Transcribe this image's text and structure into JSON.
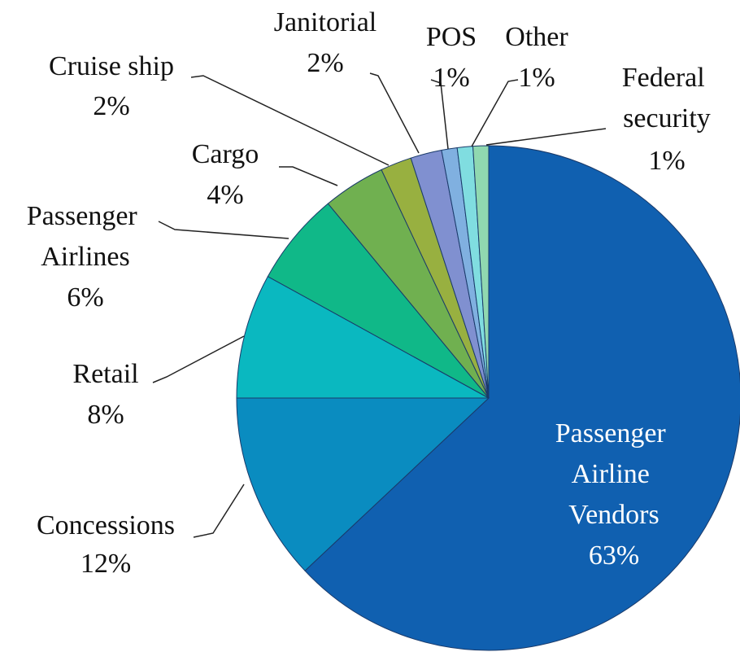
{
  "chart_data": {
    "type": "pie",
    "categories": [
      "Passenger Airline Vendors",
      "Concessions",
      "Retail",
      "Passenger Airlines",
      "Cargo",
      "Cruise ship",
      "Janitorial",
      "POS",
      "Other",
      "Federal security"
    ],
    "values": [
      63,
      12,
      8,
      6,
      4,
      2,
      2,
      1,
      1,
      1
    ],
    "value_labels": [
      "63%",
      "12%",
      "8%",
      "6%",
      "4%",
      "2%",
      "2%",
      "1%",
      "1%",
      "1%"
    ],
    "colors": [
      "#1060b0",
      "#0a8cc0",
      "#0ab8c0",
      "#10b888",
      "#70b050",
      "#98b040",
      "#8090d0",
      "#80b0e0",
      "#80dde0",
      "#90d8b0"
    ]
  }
}
